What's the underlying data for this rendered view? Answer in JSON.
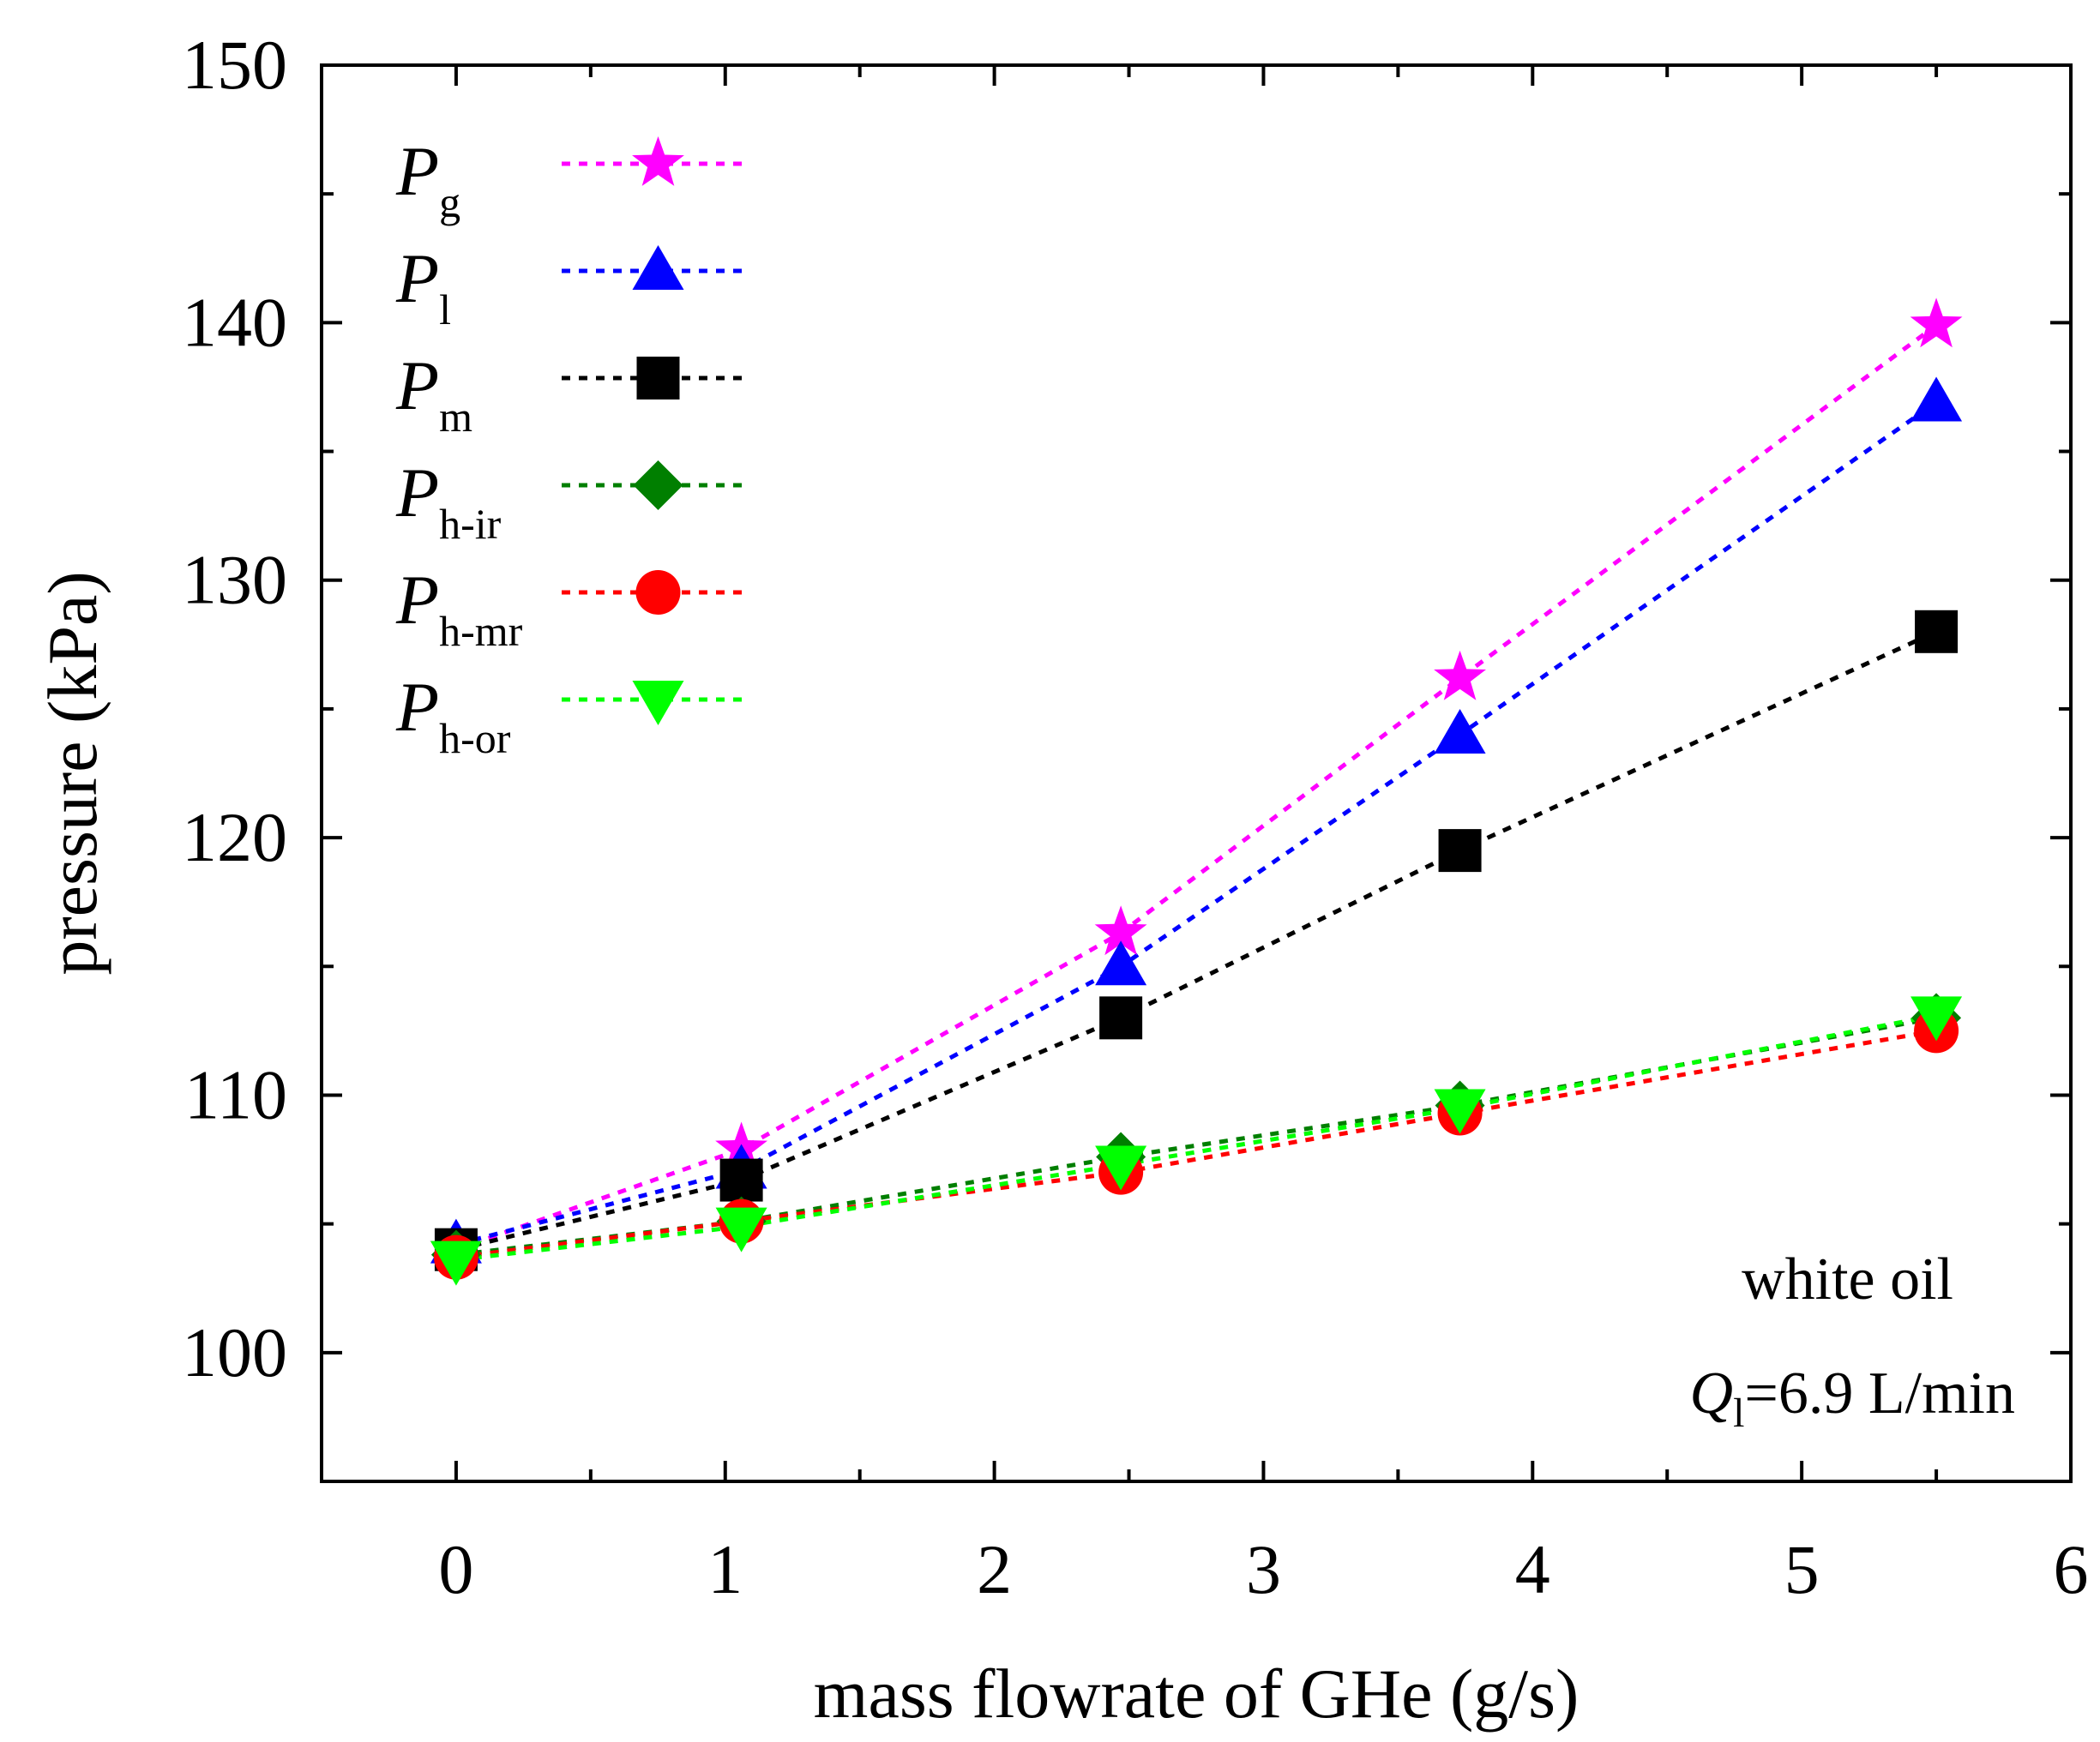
{
  "chart_data": {
    "type": "line",
    "xlabel": "mass flowrate of GHe (g/s)",
    "ylabel": "pressure (kPa)",
    "xlim": [
      -0.5,
      6
    ],
    "ylim": [
      95,
      150
    ],
    "x_ticks": [
      0,
      1,
      2,
      3,
      4,
      5,
      6
    ],
    "y_ticks": [
      100,
      110,
      120,
      130,
      140,
      150
    ],
    "x": [
      0,
      1.06,
      2.47,
      3.73,
      5.5
    ],
    "series": [
      {
        "name": "Pg",
        "sym": "P",
        "sub": "g",
        "marker": "star",
        "color": "#ff00ff",
        "values": [
          104.0,
          107.9,
          116.3,
          126.2,
          139.9
        ]
      },
      {
        "name": "Pl",
        "sym": "P",
        "sub": "l",
        "marker": "triangle-up",
        "color": "#0000ff",
        "values": [
          104.2,
          107.1,
          115.0,
          124.0,
          136.9
        ]
      },
      {
        "name": "Pm",
        "sym": "P",
        "sub": "m",
        "marker": "square",
        "color": "#000000",
        "values": [
          104.0,
          106.7,
          113.0,
          119.5,
          128.0
        ]
      },
      {
        "name": "Ph-ir",
        "sym": "P",
        "sub": "h-ir",
        "marker": "diamond",
        "color": "#007f00",
        "values": [
          103.8,
          105.1,
          107.6,
          109.6,
          113.0
        ]
      },
      {
        "name": "Ph-mr",
        "sym": "P",
        "sub": "h-mr",
        "marker": "circle",
        "color": "#ff0000",
        "values": [
          103.7,
          105.1,
          107.0,
          109.3,
          112.5
        ]
      },
      {
        "name": "Ph-or",
        "sym": "P",
        "sub": "h-or",
        "marker": "triangle-down",
        "color": "#00ff00",
        "values": [
          103.6,
          104.9,
          107.3,
          109.5,
          113.1
        ]
      }
    ],
    "annotations": [
      {
        "text": "white oil"
      },
      {
        "sym": "Q",
        "sub": "l",
        "rest": "=6.9 L/min"
      }
    ],
    "legend_position": "top-left",
    "grid": false
  }
}
